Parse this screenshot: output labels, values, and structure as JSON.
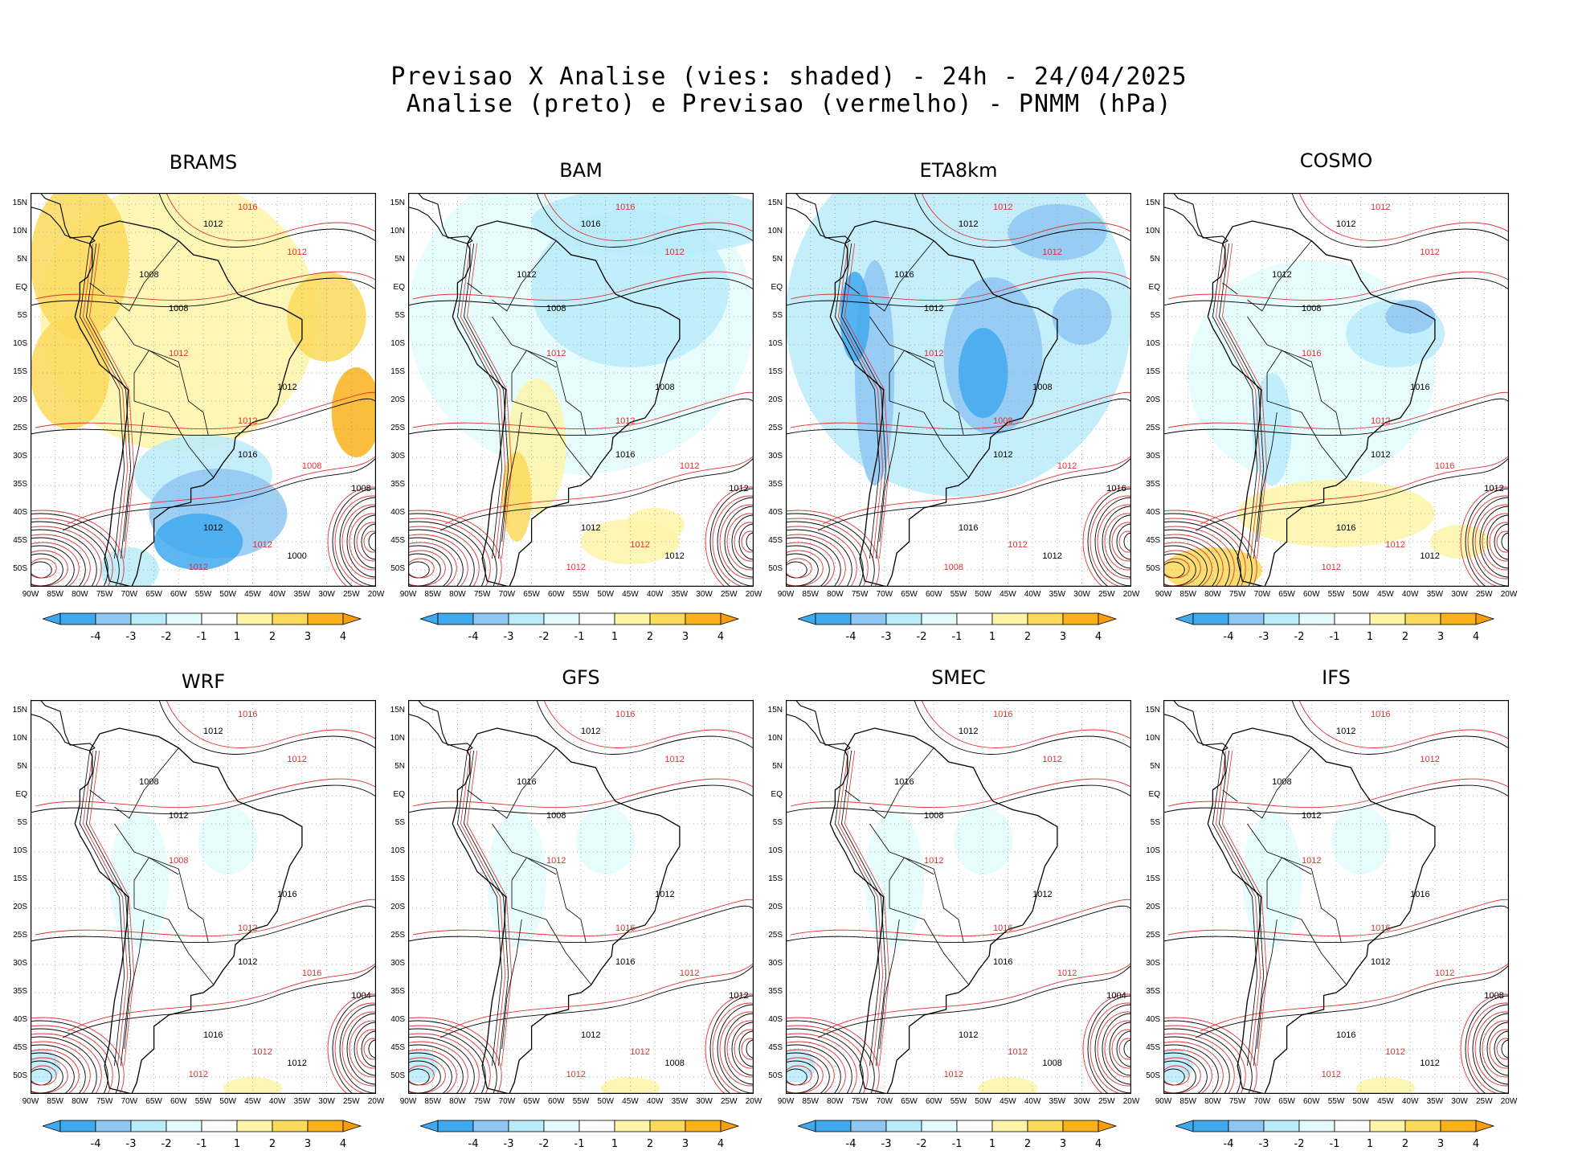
{
  "header": {
    "title_line1": "Previsao X Analise (vies: shaded) - 24h - 24/04/2025",
    "title_line2": "Analise (preto) e Previsao (vermelho) - PNMM (hPa)"
  },
  "axes": {
    "lat_ticks": [
      "15N",
      "10N",
      "5N",
      "EQ",
      "5S",
      "10S",
      "15S",
      "20S",
      "25S",
      "30S",
      "35S",
      "40S",
      "45S",
      "50S"
    ],
    "lon_ticks": [
      "90W",
      "85W",
      "80W",
      "75W",
      "70W",
      "65W",
      "60W",
      "55W",
      "50W",
      "45W",
      "40W",
      "35W",
      "30W",
      "25W",
      "20W"
    ]
  },
  "colorbar": {
    "labels": [
      "-4",
      "-3",
      "-2",
      "-1",
      "1",
      "2",
      "3",
      "4"
    ],
    "colors": [
      "#3fa9ee",
      "#8fc7f2",
      "#b9ebf9",
      "#e3fbfc",
      "#ffffff",
      "#fdf4a8",
      "#fbd95a",
      "#f9b21b",
      "#f89d0b"
    ]
  },
  "colors": {
    "analysis_contour": "#000000",
    "forecast_contour": "#e03030"
  },
  "panels": [
    {
      "name": "BRAMS",
      "bias": "warm",
      "labels_black": [
        "1012",
        "1008",
        "1008",
        "1012",
        "1016",
        "1012",
        "1008",
        "1000"
      ],
      "labels_red": [
        "1016",
        "1012",
        "1012",
        "1012",
        "1008",
        "1012",
        "1012"
      ]
    },
    {
      "name": "BAM",
      "bias": "cold",
      "labels_black": [
        "1016",
        "1012",
        "1008",
        "1008",
        "1016",
        "1012",
        "1012",
        "1012"
      ],
      "labels_red": [
        "1016",
        "1012",
        "1012",
        "1012",
        "1012",
        "1012",
        "1012"
      ]
    },
    {
      "name": "ETA8km",
      "bias": "strongcold",
      "labels_black": [
        "1012",
        "1016",
        "1012",
        "1008",
        "1012",
        "1016",
        "1016",
        "1012"
      ],
      "labels_red": [
        "1012",
        "1012",
        "1012",
        "1008",
        "1012",
        "1012",
        "1008"
      ]
    },
    {
      "name": "COSMO",
      "bias": "mixed",
      "labels_black": [
        "1012",
        "1012",
        "1008",
        "1016",
        "1012",
        "1016",
        "1012",
        "1012"
      ],
      "labels_red": [
        "1012",
        "1012",
        "1016",
        "1012",
        "1016",
        "1012",
        "1012"
      ]
    },
    {
      "name": "WRF",
      "bias": "weak",
      "labels_black": [
        "1012",
        "1008",
        "1012",
        "1016",
        "1012",
        "1016",
        "1004",
        "1012"
      ],
      "labels_red": [
        "1016",
        "1012",
        "1008",
        "1012",
        "1016",
        "1012",
        "1012"
      ]
    },
    {
      "name": "GFS",
      "bias": "weak",
      "labels_black": [
        "1012",
        "1016",
        "1008",
        "1012",
        "1016",
        "1012",
        "1012",
        "1008"
      ],
      "labels_red": [
        "1016",
        "1012",
        "1012",
        "1016",
        "1012",
        "1012",
        "1012"
      ]
    },
    {
      "name": "SMEC",
      "bias": "weak",
      "labels_black": [
        "1012",
        "1016",
        "1008",
        "1012",
        "1016",
        "1012",
        "1004",
        "1008"
      ],
      "labels_red": [
        "1016",
        "1012",
        "1012",
        "1016",
        "1012",
        "1012",
        "1012"
      ]
    },
    {
      "name": "IFS",
      "bias": "weak",
      "labels_black": [
        "1012",
        "1008",
        "1012",
        "1016",
        "1012",
        "1016",
        "1008",
        "1012"
      ],
      "labels_red": [
        "1016",
        "1012",
        "1012",
        "1016",
        "1012",
        "1012",
        "1012"
      ]
    }
  ]
}
